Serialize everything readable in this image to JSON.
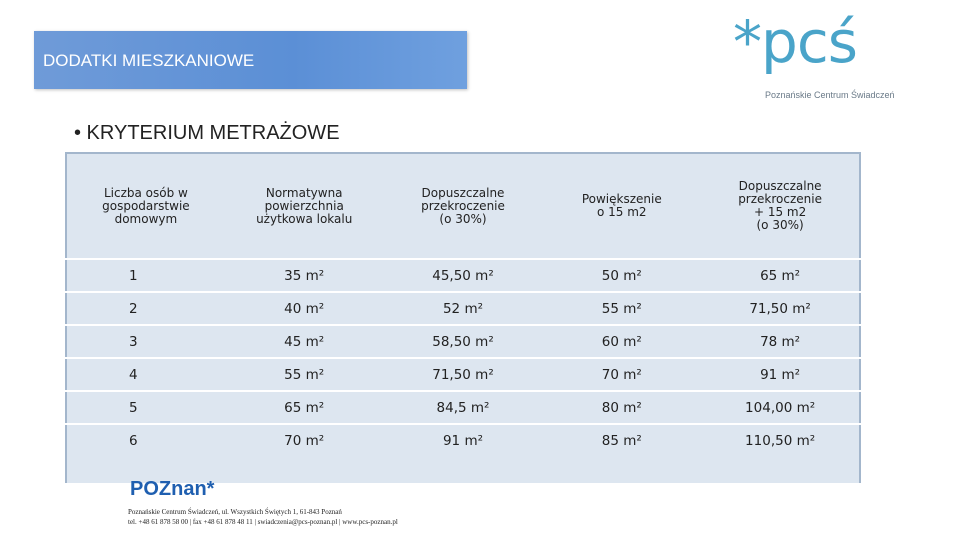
{
  "header": {
    "title": "DODATKI MIESZKANIOWE",
    "logo": "*pcś",
    "logo_subtitle": "Poznańskie Centrum Świadczeń"
  },
  "bullet": "• KRYTERIUM METRAŻOWE",
  "table": {
    "columns": [
      "Liczba osób w\ngospodarstwie\ndomowym",
      "Normatywna\npowierzchnia\nużytkowa lokalu",
      "Dopuszczalne\nprzekroczenie\n(o 30%)",
      "Powiększenie\no 15 m2",
      "Dopuszczalne\nprzekroczenie\n+ 15 m2\n(o 30%)"
    ],
    "rows": [
      [
        "1",
        "35 m²",
        "45,50 m²",
        "50 m²",
        "65 m²"
      ],
      [
        "2",
        "40 m²",
        "52 m²",
        "55 m²",
        "71,50 m²"
      ],
      [
        "3",
        "45 m²",
        "58,50 m²",
        "60 m²",
        "78 m²"
      ],
      [
        "4",
        "55 m²",
        "71,50 m²",
        "70 m²",
        "91 m²"
      ],
      [
        "5",
        "65 m²",
        "84,5 m²",
        "80 m²",
        "104,00 m²"
      ],
      [
        "6",
        "70 m²",
        "91 m²",
        "85 m²",
        "110,50 m²"
      ]
    ]
  },
  "footer": {
    "logo": "POZnan*",
    "address": "Poznańskie Centrum Świadczeń, ul. Wszystkich Świętych 1, 61-843 Poznań",
    "contact": "tel. +48 61 878 58 00 | fax +48 61 878 48 11 | swiadczenia@pcs-poznan.pl | www.pcs-poznan.pl"
  }
}
